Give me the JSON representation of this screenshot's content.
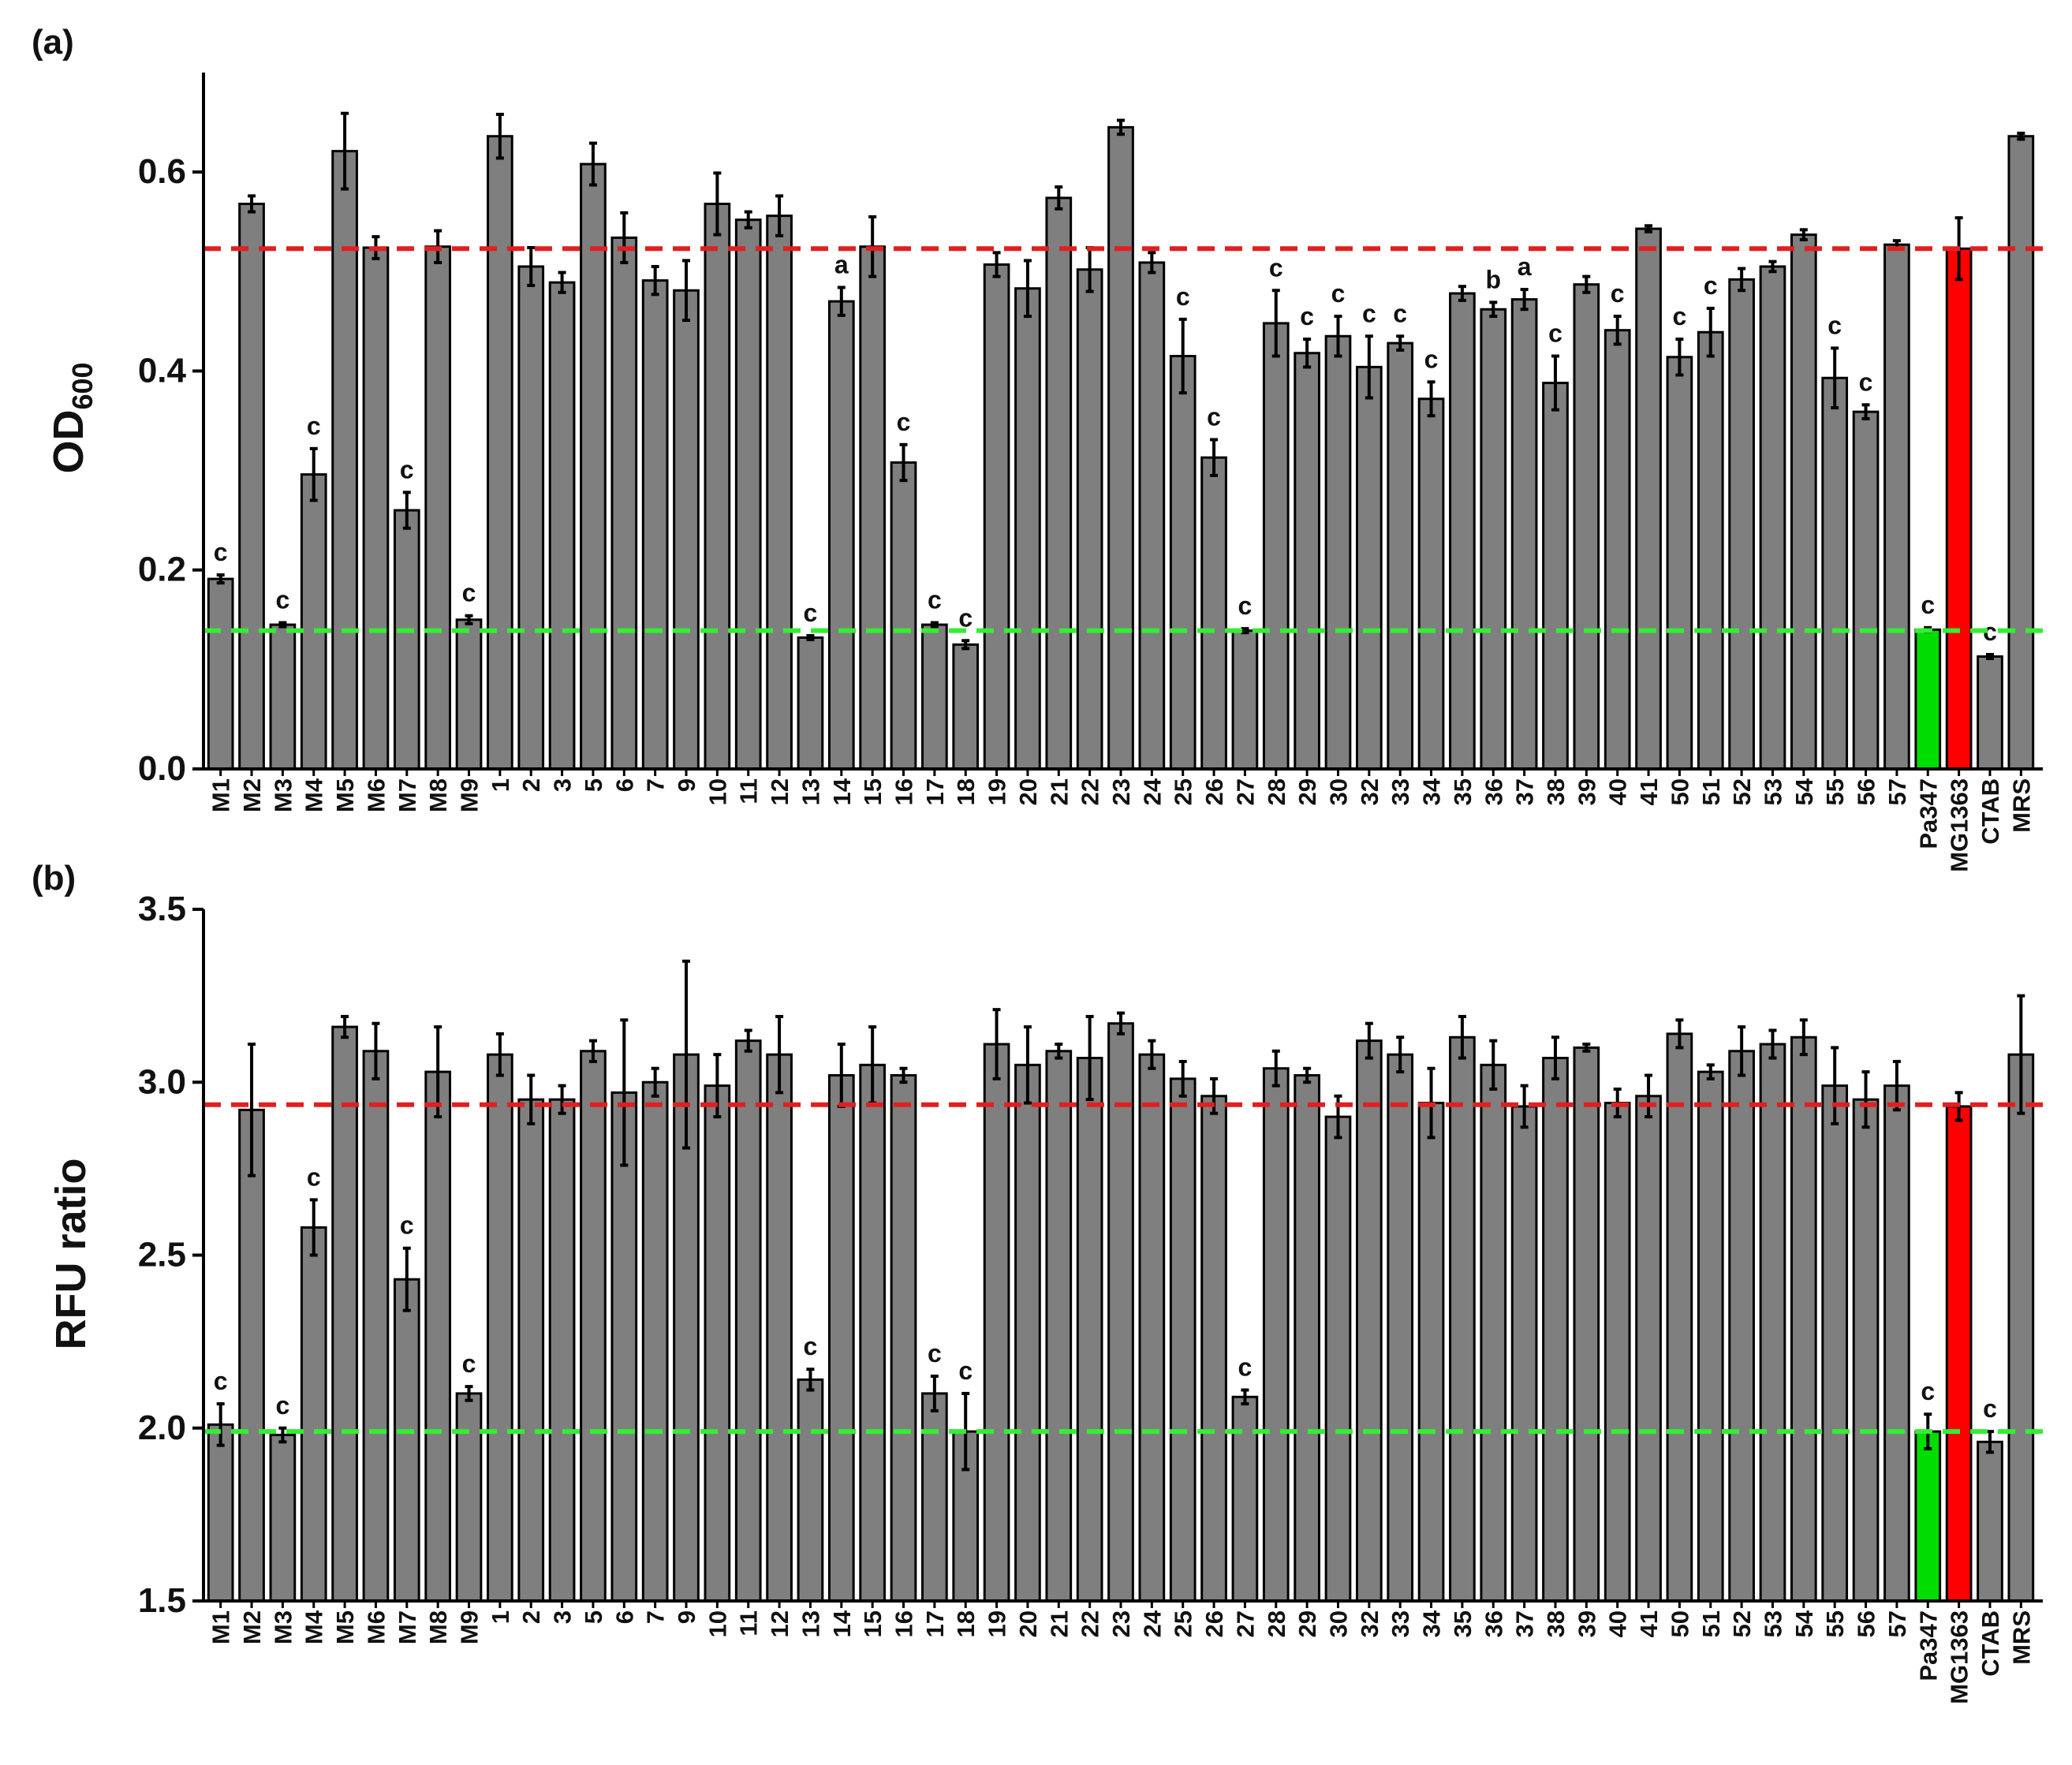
{
  "panels": [
    {
      "label": "(a)",
      "ylabel_main": "OD",
      "ylabel_sub": "600"
    },
    {
      "label": "(b)",
      "ylabel_main": "RFU ratio",
      "ylabel_sub": ""
    }
  ],
  "colors": {
    "bar": "#7f7f7f",
    "bar_edge": "#000000",
    "highlight_red": "#ff0000",
    "highlight_green": "#00dd00",
    "line_red": "#e02020",
    "line_green": "#33ee33"
  },
  "chart_data": [
    {
      "type": "bar",
      "title": "(a)",
      "xlabel": "",
      "ylabel": "OD600",
      "ylim": [
        0,
        0.7
      ],
      "yticks": [
        0.0,
        0.2,
        0.4,
        0.6
      ],
      "ytick_labels": [
        "0.0",
        "0.2",
        "0.4",
        "0.6"
      ],
      "categories": [
        "M1",
        "M2",
        "M3",
        "M4",
        "M5",
        "M6",
        "M7",
        "M8",
        "M9",
        "1",
        "2",
        "3",
        "5",
        "6",
        "7",
        "9",
        "10",
        "11",
        "12",
        "13",
        "14",
        "15",
        "16",
        "17",
        "18",
        "19",
        "20",
        "21",
        "22",
        "23",
        "24",
        "25",
        "26",
        "27",
        "28",
        "29",
        "30",
        "32",
        "33",
        "34",
        "35",
        "36",
        "37",
        "38",
        "39",
        "40",
        "41",
        "50",
        "51",
        "52",
        "53",
        "54",
        "55",
        "56",
        "57",
        "Pa347",
        "MG1363",
        "CTAB",
        "MRS"
      ],
      "values": [
        0.191,
        0.568,
        0.145,
        0.296,
        0.621,
        0.524,
        0.26,
        0.525,
        0.15,
        0.636,
        0.505,
        0.489,
        0.608,
        0.534,
        0.491,
        0.481,
        0.568,
        0.552,
        0.556,
        0.132,
        0.47,
        0.525,
        0.308,
        0.145,
        0.125,
        0.507,
        0.483,
        0.574,
        0.502,
        0.645,
        0.509,
        0.415,
        0.313,
        0.139,
        0.448,
        0.418,
        0.435,
        0.404,
        0.428,
        0.372,
        0.478,
        0.462,
        0.472,
        0.388,
        0.487,
        0.441,
        0.543,
        0.414,
        0.439,
        0.492,
        0.505,
        0.537,
        0.393,
        0.359,
        0.527,
        0.14,
        0.523,
        0.113,
        0.636
      ],
      "errors": [
        0.004,
        0.008,
        0.002,
        0.026,
        0.038,
        0.011,
        0.018,
        0.016,
        0.004,
        0.022,
        0.019,
        0.01,
        0.021,
        0.025,
        0.014,
        0.03,
        0.031,
        0.008,
        0.02,
        0.002,
        0.014,
        0.03,
        0.018,
        0.002,
        0.004,
        0.012,
        0.028,
        0.011,
        0.022,
        0.007,
        0.01,
        0.037,
        0.018,
        0.002,
        0.033,
        0.014,
        0.02,
        0.031,
        0.007,
        0.017,
        0.007,
        0.007,
        0.01,
        0.027,
        0.008,
        0.014,
        0.003,
        0.018,
        0.024,
        0.011,
        0.005,
        0.005,
        0.03,
        0.007,
        0.004,
        0.002,
        0.031,
        0.002,
        0.003
      ],
      "significance": [
        "c",
        "",
        "c",
        "c",
        "",
        "",
        "c",
        "",
        "c",
        "",
        "",
        "",
        "",
        "",
        "",
        "",
        "",
        "",
        "",
        "c",
        "a",
        "",
        "c",
        "c",
        "c",
        "",
        "",
        "",
        "",
        "",
        "",
        "c",
        "c",
        "c",
        "c",
        "c",
        "c",
        "c",
        "c",
        "c",
        "",
        "b",
        "a",
        "c",
        "",
        "c",
        "",
        "c",
        "c",
        "",
        "",
        "",
        "c",
        "c",
        "",
        "c",
        "",
        "c",
        ""
      ],
      "bar_colors": {
        "Pa347": "#00dd00",
        "MG1363": "#ff0000"
      },
      "reference_lines": [
        {
          "value": 0.523,
          "color": "#e02020"
        },
        {
          "value": 0.139,
          "color": "#33ee33"
        }
      ],
      "grid": false,
      "legend": "none"
    },
    {
      "type": "bar",
      "title": "(b)",
      "xlabel": "",
      "ylabel": "RFU ratio",
      "ylim": [
        1.5,
        3.5
      ],
      "yticks": [
        1.5,
        2.0,
        2.5,
        3.0,
        3.5
      ],
      "ytick_labels": [
        "1.5",
        "2.0",
        "2.5",
        "3.0",
        "3.5"
      ],
      "categories": [
        "M1",
        "M2",
        "M3",
        "M4",
        "M5",
        "M6",
        "M7",
        "M8",
        "M9",
        "1",
        "2",
        "3",
        "5",
        "6",
        "7",
        "9",
        "10",
        "11",
        "12",
        "13",
        "14",
        "15",
        "16",
        "17",
        "18",
        "19",
        "20",
        "21",
        "22",
        "23",
        "24",
        "25",
        "26",
        "27",
        "28",
        "29",
        "30",
        "32",
        "33",
        "34",
        "35",
        "36",
        "37",
        "38",
        "39",
        "40",
        "41",
        "50",
        "51",
        "52",
        "53",
        "54",
        "55",
        "56",
        "57",
        "Pa347",
        "MG1363",
        "CTAB",
        "MRS"
      ],
      "values": [
        2.01,
        2.92,
        1.98,
        2.58,
        3.16,
        3.09,
        2.43,
        3.03,
        2.1,
        3.08,
        2.95,
        2.95,
        3.09,
        2.97,
        3.0,
        3.08,
        2.99,
        3.12,
        3.08,
        2.14,
        3.02,
        3.05,
        3.02,
        2.1,
        1.99,
        3.11,
        3.05,
        3.09,
        3.07,
        3.17,
        3.08,
        3.01,
        2.96,
        2.09,
        3.04,
        3.02,
        2.9,
        3.12,
        3.08,
        2.94,
        3.13,
        3.05,
        2.93,
        3.07,
        3.1,
        2.94,
        2.96,
        3.14,
        3.03,
        3.09,
        3.11,
        3.13,
        2.99,
        2.95,
        2.99,
        1.99,
        2.93,
        1.96,
        3.08
      ],
      "errors": [
        0.06,
        0.19,
        0.02,
        0.08,
        0.03,
        0.08,
        0.09,
        0.13,
        0.02,
        0.06,
        0.07,
        0.04,
        0.03,
        0.21,
        0.04,
        0.27,
        0.09,
        0.03,
        0.11,
        0.03,
        0.09,
        0.11,
        0.02,
        0.05,
        0.11,
        0.1,
        0.11,
        0.02,
        0.12,
        0.03,
        0.04,
        0.05,
        0.05,
        0.02,
        0.05,
        0.02,
        0.06,
        0.05,
        0.05,
        0.1,
        0.06,
        0.07,
        0.06,
        0.06,
        0.01,
        0.04,
        0.06,
        0.04,
        0.02,
        0.07,
        0.04,
        0.05,
        0.11,
        0.08,
        0.07,
        0.05,
        0.04,
        0.03,
        0.17
      ],
      "significance": [
        "c",
        "",
        "c",
        "c",
        "",
        "",
        "c",
        "",
        "c",
        "",
        "",
        "",
        "",
        "",
        "",
        "",
        "",
        "",
        "",
        "c",
        "",
        "",
        "",
        "c",
        "c",
        "",
        "",
        "",
        "",
        "",
        "",
        "",
        "",
        "c",
        "",
        "",
        "",
        "",
        "",
        "",
        "",
        "",
        "",
        "",
        "",
        "",
        "",
        "",
        "",
        "",
        "",
        "",
        "",
        "",
        "",
        "c",
        "",
        "c",
        ""
      ],
      "bar_colors": {
        "Pa347": "#00dd00",
        "MG1363": "#ff0000"
      },
      "reference_lines": [
        {
          "value": 2.935,
          "color": "#e02020"
        },
        {
          "value": 1.99,
          "color": "#33ee33"
        }
      ],
      "grid": false,
      "legend": "none"
    }
  ]
}
